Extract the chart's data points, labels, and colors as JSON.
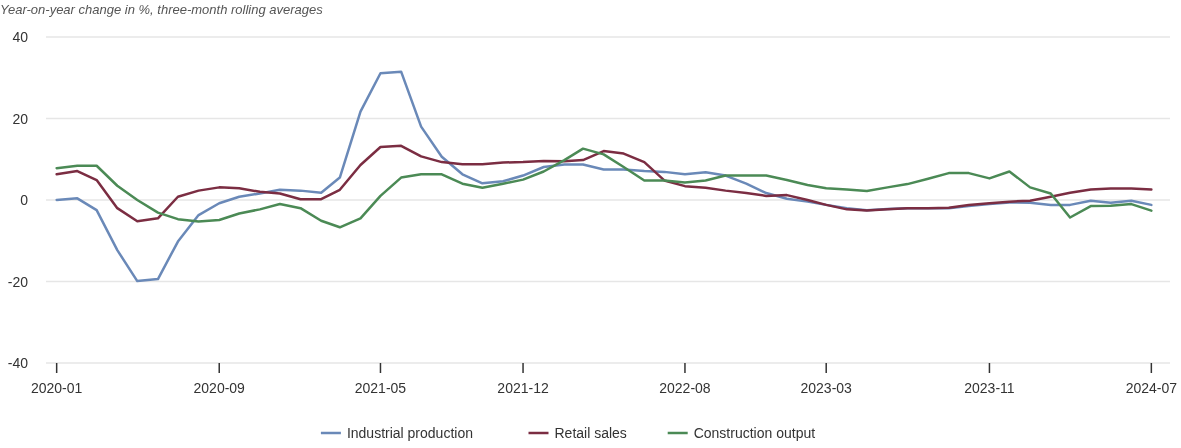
{
  "chart_data": {
    "type": "line",
    "ylabel": "Year-on-year change in %, three-month rolling averages",
    "x": [
      "2020-01",
      "2020-02",
      "2020-03",
      "2020-04",
      "2020-05",
      "2020-06",
      "2020-07",
      "2020-08",
      "2020-09",
      "2020-10",
      "2020-11",
      "2020-12",
      "2021-01",
      "2021-02",
      "2021-03",
      "2021-04",
      "2021-05",
      "2021-06",
      "2021-07",
      "2021-08",
      "2021-09",
      "2021-10",
      "2021-11",
      "2021-12",
      "2022-01",
      "2022-02",
      "2022-03",
      "2022-04",
      "2022-05",
      "2022-06",
      "2022-07",
      "2022-08",
      "2022-09",
      "2022-10",
      "2022-11",
      "2022-12",
      "2023-01",
      "2023-02",
      "2023-03",
      "2023-04",
      "2023-05",
      "2023-06",
      "2023-07",
      "2023-08",
      "2023-09",
      "2023-10",
      "2023-11",
      "2023-12",
      "2024-01",
      "2024-02",
      "2024-03",
      "2024-04",
      "2024-05",
      "2024-06",
      "2024-07"
    ],
    "series": [
      {
        "name": "Industrial production",
        "color": "#6a89b8",
        "values": [
          0,
          0.4,
          -2.5,
          -12.3,
          -19.9,
          -19.4,
          -10.2,
          -3.7,
          -0.8,
          0.8,
          1.6,
          2.5,
          2.3,
          1.8,
          5.5,
          21.7,
          31.1,
          31.5,
          18,
          10.6,
          6.3,
          4.1,
          4.6,
          6,
          8.1,
          8.7,
          8.7,
          7.5,
          7.5,
          7.1,
          6.9,
          6.3,
          6.8,
          6,
          4,
          1.7,
          0.3,
          -0.4,
          -1.2,
          -2,
          -2.5,
          -2.2,
          -2,
          -2,
          -2,
          -1.5,
          -1,
          -0.6,
          -0.7,
          -1.2,
          -1.2,
          -0.2,
          -0.7,
          -0.2,
          -1.2
        ]
      },
      {
        "name": "Retail sales",
        "color": "#7b2d42",
        "values": [
          6.3,
          7.1,
          4.9,
          -2,
          -5.2,
          -4.5,
          0.8,
          2.3,
          3.1,
          2.9,
          2,
          1.6,
          0.2,
          0.2,
          2.5,
          8.6,
          13,
          13.3,
          10.7,
          9.3,
          8.8,
          8.8,
          9.2,
          9.3,
          9.6,
          9.5,
          9.8,
          12,
          11.4,
          9.3,
          4.8,
          3.4,
          3,
          2.3,
          1.7,
          1,
          1.2,
          0,
          -1.2,
          -2.3,
          -2.6,
          -2.3,
          -2,
          -2,
          -1.9,
          -1.2,
          -0.8,
          -0.4,
          -0.2,
          0.8,
          1.8,
          2.6,
          2.8,
          2.8,
          2.6
        ]
      },
      {
        "name": "Construction output",
        "color": "#4b8a55",
        "values": [
          7.8,
          8.4,
          8.4,
          3.5,
          0,
          -3.1,
          -4.7,
          -5.3,
          -4.9,
          -3.3,
          -2.3,
          -1,
          -2,
          -5.1,
          -6.7,
          -4.5,
          1,
          5.5,
          6.3,
          6.3,
          4,
          3,
          4,
          5,
          7,
          9.8,
          12.6,
          11.2,
          8.1,
          4.8,
          4.8,
          4.3,
          4.8,
          6,
          6,
          6,
          4.9,
          3.7,
          2.9,
          2.6,
          2.2,
          3.1,
          3.9,
          5.2,
          6.6,
          6.6,
          5.3,
          7,
          3.1,
          1.6,
          -4.3,
          -1.5,
          -1.4,
          -1,
          -2.6
        ]
      }
    ],
    "xlim": [
      "2019-12-16",
      "2024-07-29"
    ],
    "xticks": [
      "2020-01",
      "2020-09",
      "2021-05",
      "2021-12",
      "2022-08",
      "2023-03",
      "2023-11",
      "2024-07"
    ],
    "ylim": [
      -40,
      40
    ],
    "yticks": [
      -40,
      -20,
      0,
      20,
      40
    ],
    "grid": "y",
    "legend": "bottom",
    "marker": "none",
    "line_style": "solid"
  }
}
